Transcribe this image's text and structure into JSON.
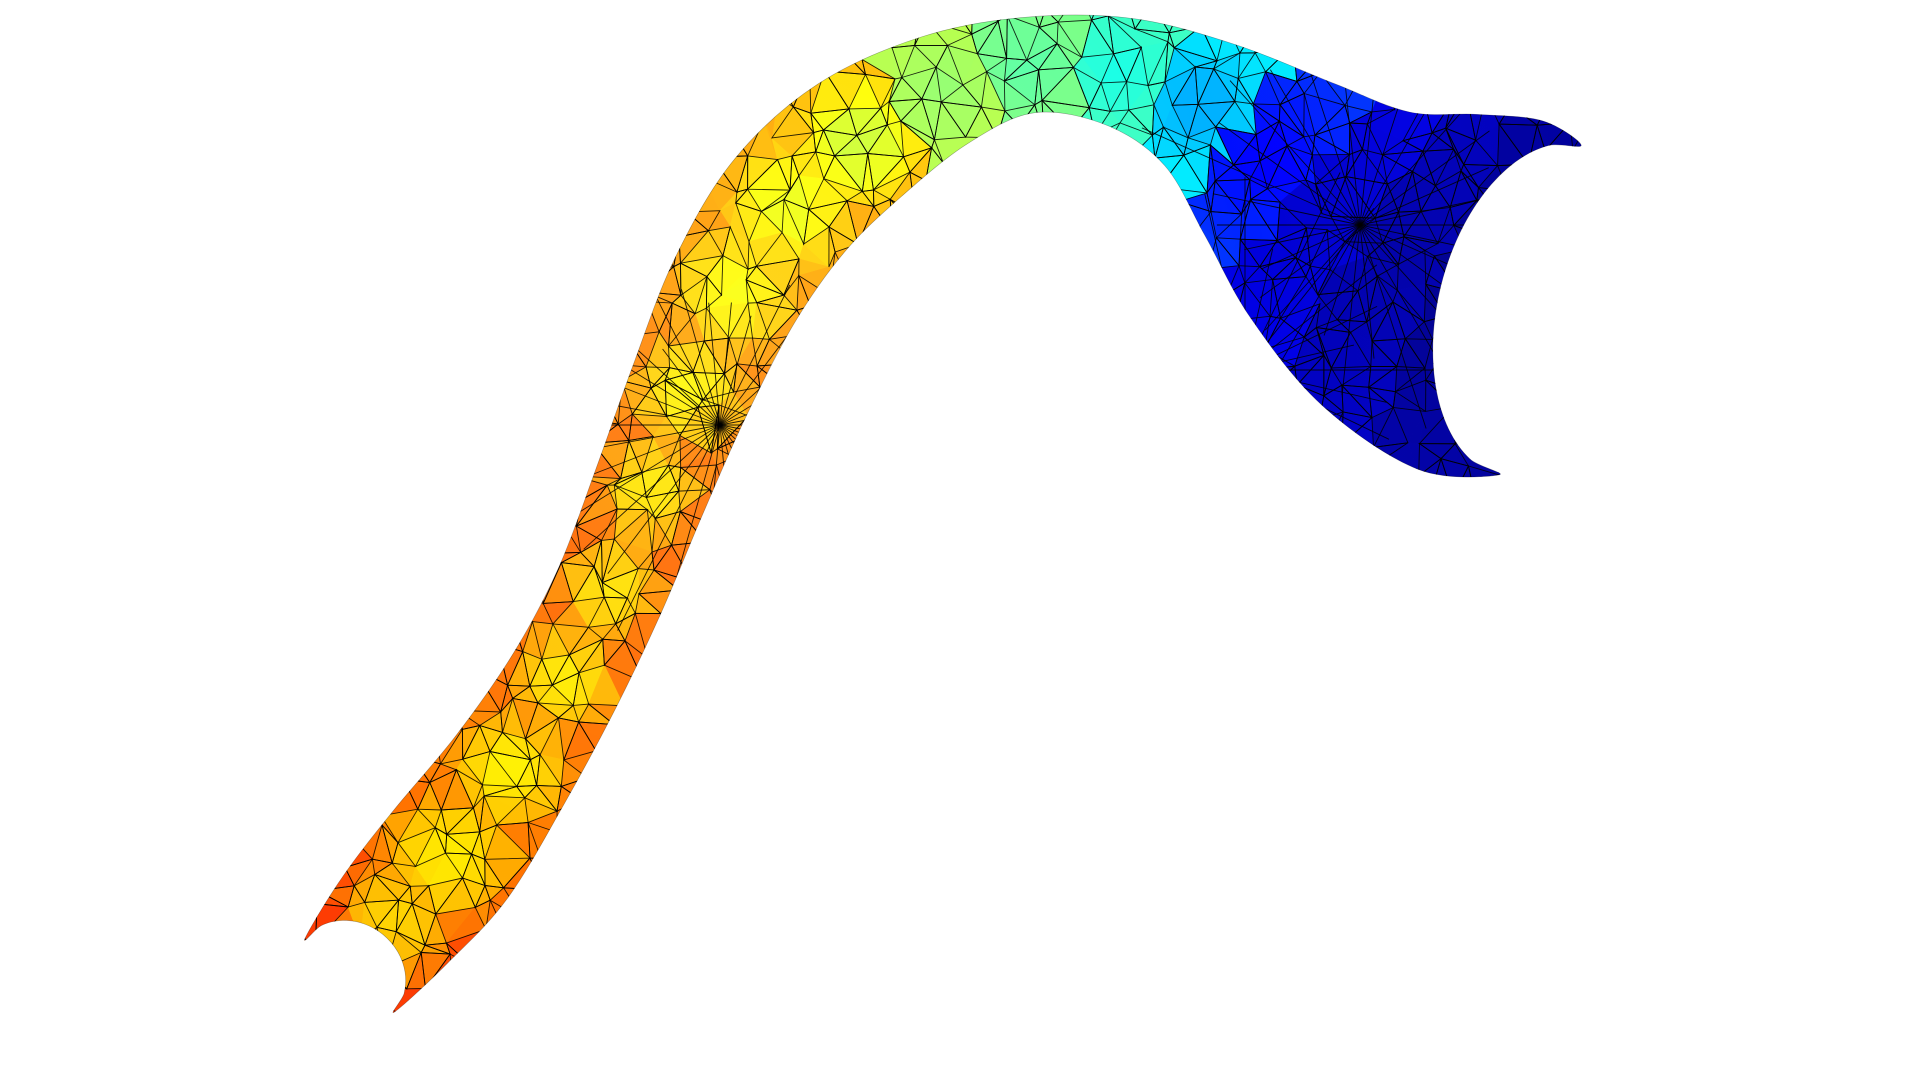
{
  "scene": {
    "background_color": "#ffffff",
    "object": "triangulated-surface-mesh",
    "colormap": "jet",
    "colormap_stops": [
      "#00008f",
      "#0000ff",
      "#00ffff",
      "#80ff80",
      "#ffff00",
      "#ffa000",
      "#ff0000"
    ],
    "edge_color": "#000000",
    "shading": "interpolated"
  }
}
